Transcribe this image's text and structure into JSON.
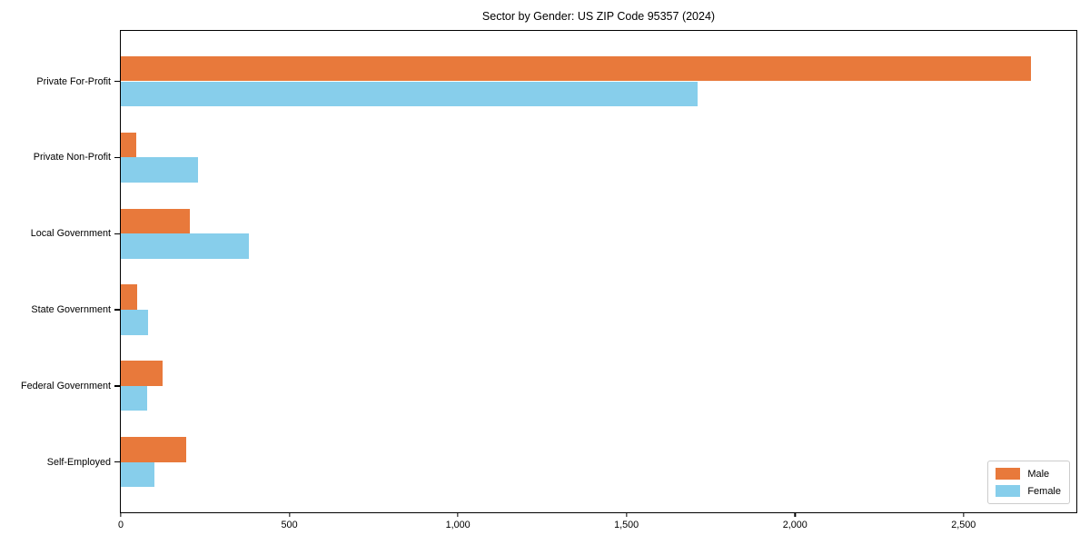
{
  "chart_data": {
    "type": "bar",
    "orientation": "horizontal",
    "title": "Sector by Gender: US ZIP Code 95357 (2024)",
    "categories": [
      "Private For-Profit",
      "Private Non-Profit",
      "Local Government",
      "State Government",
      "Federal Government",
      "Self-Employed"
    ],
    "series": [
      {
        "name": "Male",
        "color": "#e8793b",
        "values": [
          2700,
          46,
          206,
          49,
          125,
          193
        ]
      },
      {
        "name": "Female",
        "color": "#87ceeb",
        "values": [
          1710,
          230,
          380,
          80,
          77,
          99
        ]
      }
    ],
    "xlabel": "",
    "ylabel": "",
    "xlim": [
      0,
      2840
    ],
    "xticks": [
      0,
      500,
      1000,
      1500,
      2000,
      2500
    ],
    "xtick_labels": [
      "0",
      "500",
      "1,000",
      "1,500",
      "2,000",
      "2,500"
    ],
    "grid": false,
    "legend_position": "lower right",
    "colors": {
      "male": "#e8793b",
      "female": "#87ceeb",
      "axis": "#000000",
      "background": "#ffffff",
      "legend_border": "#cccccc"
    }
  }
}
